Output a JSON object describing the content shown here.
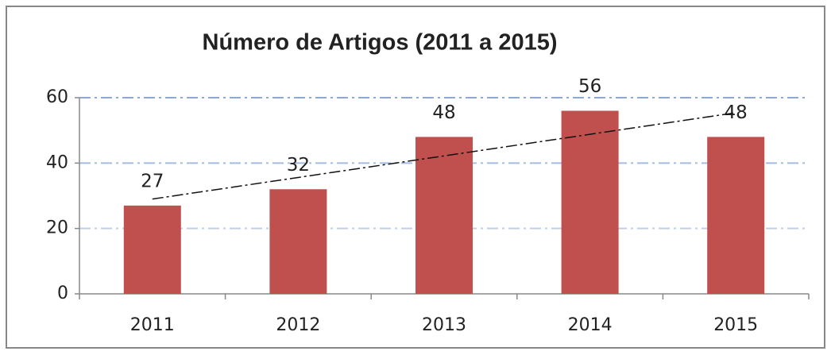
{
  "chart_data": {
    "type": "bar",
    "title": "Número de Artigos (2011 a 2015)",
    "categories": [
      "2011",
      "2012",
      "2013",
      "2014",
      "2015"
    ],
    "values": [
      27,
      32,
      48,
      56,
      48
    ],
    "color": "#c0504d",
    "ylim": [
      0,
      60
    ],
    "yticks": [
      0,
      20,
      40,
      60
    ],
    "grid": true,
    "trendline": "linear"
  }
}
